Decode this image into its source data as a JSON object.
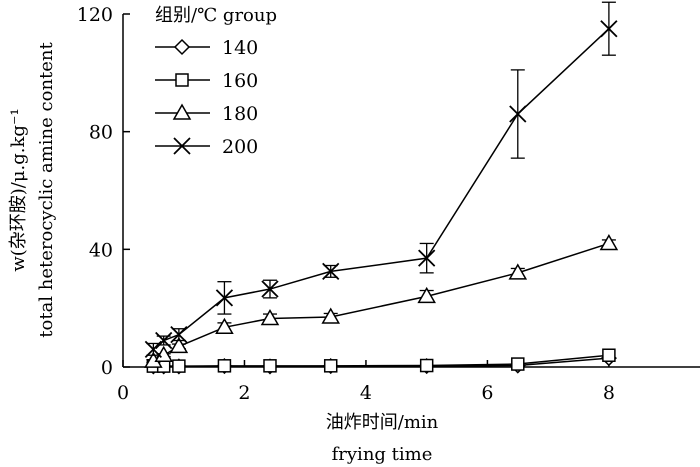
{
  "chart_data": {
    "type": "line",
    "xlabel_line1": "油炸时间/min",
    "xlabel_line2": "frying time",
    "ylabel_line1": "w(杂环胺)/μ.g.kg⁻¹",
    "ylabel_line2": "total heterocyclic amine content",
    "xlim": [
      0,
      9.5
    ],
    "ylim": [
      0,
      120
    ],
    "xticks": [
      0,
      2,
      4,
      6,
      8
    ],
    "yticks": [
      0,
      40,
      80,
      120
    ],
    "grid": false,
    "legend_title": "组别/℃ group",
    "legend_position": "top-left",
    "series": [
      {
        "name": "140",
        "marker": "diamond",
        "x": [
          0.5,
          0.67,
          0.92,
          1.67,
          2.42,
          3.42,
          5.0,
          6.5,
          8.0
        ],
        "y": [
          0.2,
          0.2,
          0.2,
          0.3,
          0.2,
          0.3,
          0.3,
          0.5,
          3.0
        ],
        "err": [
          0,
          0,
          0,
          0,
          0,
          0,
          0,
          0,
          0
        ]
      },
      {
        "name": "160",
        "marker": "square",
        "x": [
          0.5,
          0.67,
          0.92,
          1.67,
          2.42,
          3.42,
          5.0,
          6.5,
          8.0
        ],
        "y": [
          0.3,
          0.3,
          0.3,
          0.4,
          0.4,
          0.4,
          0.5,
          1.0,
          4.0
        ],
        "err": [
          0,
          0,
          0,
          0,
          0,
          0,
          0,
          0,
          0
        ]
      },
      {
        "name": "180",
        "marker": "triangle",
        "x": [
          0.5,
          0.67,
          0.92,
          1.67,
          2.42,
          3.42,
          5.0,
          6.5,
          8.0
        ],
        "y": [
          2,
          4,
          7,
          13.5,
          16.5,
          17,
          24,
          32,
          42
        ],
        "err": [
          0.5,
          0.5,
          0.8,
          1.5,
          1.5,
          1.2,
          2,
          1.5,
          1.2
        ]
      },
      {
        "name": "200",
        "marker": "x",
        "x": [
          0.5,
          0.67,
          0.92,
          1.67,
          2.42,
          3.42,
          5.0,
          6.5,
          8.0
        ],
        "y": [
          6,
          9,
          11,
          23.5,
          26.5,
          32.5,
          37,
          86,
          115
        ],
        "err": [
          2,
          1.5,
          2,
          5.5,
          3,
          2,
          5,
          15,
          9
        ]
      }
    ]
  }
}
